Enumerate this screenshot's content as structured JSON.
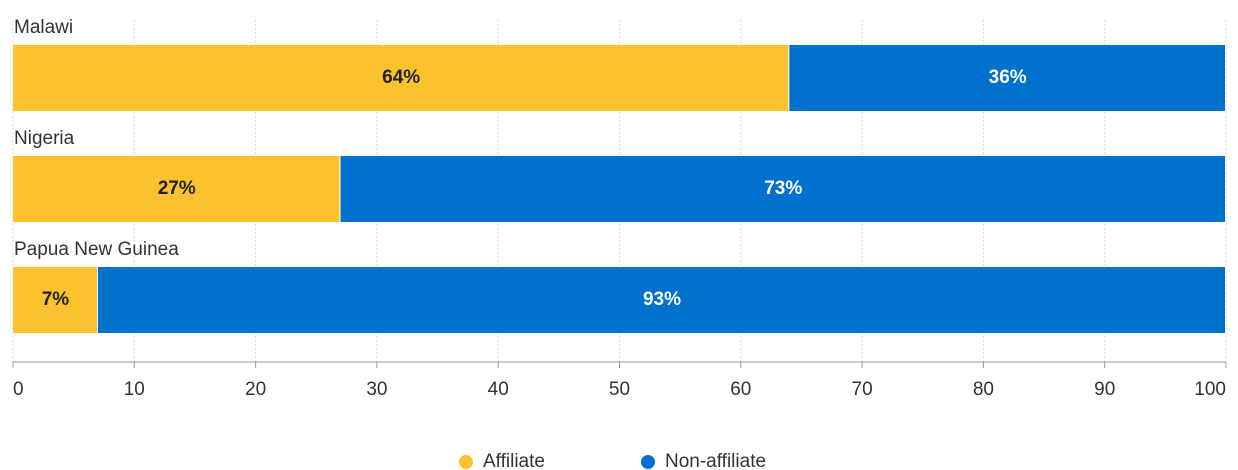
{
  "chart_data": {
    "type": "stacked-bar",
    "orientation": "horizontal",
    "categories": [
      "Malawi",
      "Nigeria",
      "Papua New Guinea"
    ],
    "series": [
      {
        "name": "Affiliate",
        "color": "#fcc22d",
        "values": [
          64,
          27,
          7
        ],
        "value_labels": [
          "64%",
          "27%",
          "7%"
        ]
      },
      {
        "name": "Non-affiliate",
        "color": "#0072ce",
        "values": [
          36,
          73,
          93
        ],
        "value_labels": [
          "36%",
          "73%",
          "93%"
        ]
      }
    ],
    "xlim": [
      0,
      100
    ],
    "xticks": [
      0,
      10,
      20,
      30,
      40,
      50,
      60,
      70,
      80,
      90,
      100
    ],
    "grid": true,
    "legend": "bottom"
  }
}
